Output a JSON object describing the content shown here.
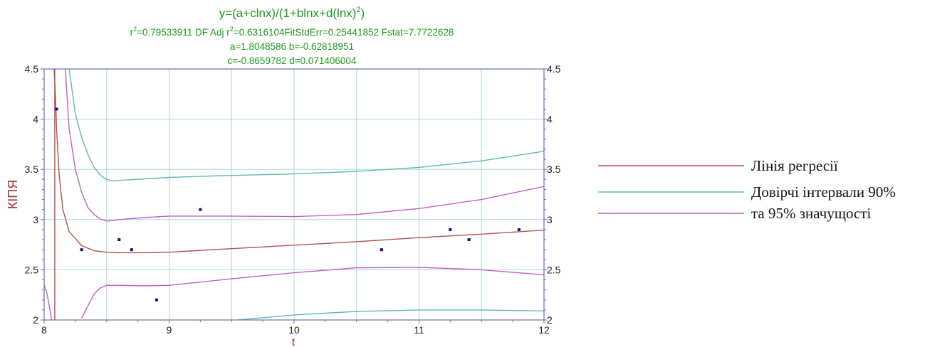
{
  "chart_data": {
    "type": "scatter",
    "title": "y=(a+clnx)/(1+blnx+d(lnx)",
    "title_superscript": "2",
    "title_tail": ")",
    "stats": {
      "r2_prefix": "r",
      "r2_sup": "2",
      "r2_value": "=0.79533911  DF Adj r",
      "adj_sup": "2",
      "adj_tail": "=0.6316104FitStdErr=0.25441852  Fstat=7.7722628"
    },
    "params_line1": "a=1.8048586 b=-0.62818951",
    "params_line2": "c=-0.8659782 d=0.071406004",
    "xlabel": "t",
    "ylabel": "КІПЯ",
    "xlim": [
      8,
      12
    ],
    "ylim": [
      2,
      4.5
    ],
    "xticks": [
      "8",
      "9",
      "10",
      "11",
      "12"
    ],
    "xtick_values": [
      8,
      9,
      10,
      11,
      12
    ],
    "yticks": [
      "2",
      "2.5",
      "3",
      "3.5",
      "4",
      "4.5"
    ],
    "ytick_values": [
      2,
      2.5,
      3,
      3.5,
      4,
      4.5
    ],
    "grid": true,
    "colors": {
      "title": "#1a9a1a",
      "regression": "#b4504f",
      "ci90": "#5fb8b2",
      "ci95": "#c060c8",
      "points": "#10107a",
      "axis": "#6a6ab0",
      "grid": "#a8dcd8",
      "ylabel": "#a03030",
      "xlabel": "#a03030",
      "legend_text": "#111111"
    },
    "points": {
      "x": [
        8.1,
        8.3,
        8.6,
        8.7,
        8.9,
        9.25,
        10.7,
        11.25,
        11.4,
        11.8
      ],
      "y": [
        4.1,
        2.7,
        2.8,
        2.7,
        2.2,
        3.1,
        2.7,
        2.9,
        2.8,
        2.9
      ]
    },
    "curves": [
      {
        "name": "regression",
        "color_key": "regression",
        "segments": [
          {
            "x": [
              8.08,
              8.09,
              8.1,
              8.12,
              8.15,
              8.2,
              8.3,
              8.4,
              8.5,
              8.6,
              8.8,
              9.0,
              9.5,
              10.0,
              10.5,
              11.0,
              11.5,
              12.0
            ],
            "y": [
              4.5,
              4.25,
              3.9,
              3.45,
              3.1,
              2.88,
              2.74,
              2.69,
              2.675,
              2.67,
              2.67,
              2.675,
              2.71,
              2.745,
              2.78,
              2.82,
              2.855,
              2.895
            ]
          },
          {
            "x": [
              8.085,
              8.085
            ],
            "y": [
              4.5,
              2.0
            ]
          }
        ]
      },
      {
        "name": "ci90",
        "color_key": "ci90",
        "segments": [
          {
            "x": [
              8.2,
              8.25,
              8.3,
              8.35,
              8.4,
              8.45,
              8.5,
              8.55,
              8.6,
              9.0,
              9.5,
              10.0,
              10.5,
              11.0,
              11.5,
              12.0
            ],
            "y": [
              4.5,
              4.05,
              3.82,
              3.65,
              3.52,
              3.44,
              3.4,
              3.385,
              3.39,
              3.42,
              3.44,
              3.455,
              3.48,
              3.52,
              3.585,
              3.68
            ]
          },
          {
            "x": [
              9.55,
              10.0,
              10.5,
              11.0,
              11.5,
              12.0
            ],
            "y": [
              2.0,
              2.05,
              2.085,
              2.1,
              2.1,
              2.09
            ]
          }
        ]
      },
      {
        "name": "ci95",
        "color_key": "ci95",
        "segments": [
          {
            "x": [
              8.17,
              8.2,
              8.25,
              8.3,
              8.35,
              8.4,
              8.45,
              8.5,
              8.55,
              8.6,
              8.8,
              9.0,
              9.5,
              10.0,
              10.5,
              11.0,
              11.5,
              12.0
            ],
            "y": [
              4.5,
              3.9,
              3.5,
              3.27,
              3.12,
              3.05,
              3.005,
              2.985,
              2.99,
              3.0,
              3.02,
              3.035,
              3.035,
              3.03,
              3.05,
              3.11,
              3.2,
              3.33
            ]
          },
          {
            "x": [
              8.3,
              8.35,
              8.4,
              8.45,
              8.5,
              8.6,
              8.8,
              9.0,
              9.5,
              10.0,
              10.5,
              11.0,
              11.5,
              12.0
            ],
            "y": [
              2.02,
              2.14,
              2.26,
              2.32,
              2.345,
              2.345,
              2.34,
              2.345,
              2.41,
              2.47,
              2.52,
              2.525,
              2.5,
              2.45
            ]
          },
          {
            "x": [
              8.0,
              8.02,
              8.04,
              8.06
            ],
            "y": [
              2.35,
              2.28,
              2.15,
              2.0
            ]
          }
        ]
      }
    ]
  },
  "legend": {
    "items": [
      {
        "label": "Лінія регресії",
        "color_key": "regression"
      },
      {
        "label": "Довірчі інтервали 90%",
        "color_key": "ci90"
      },
      {
        "label": "та 95% значущості",
        "color_key": "ci95"
      }
    ]
  }
}
